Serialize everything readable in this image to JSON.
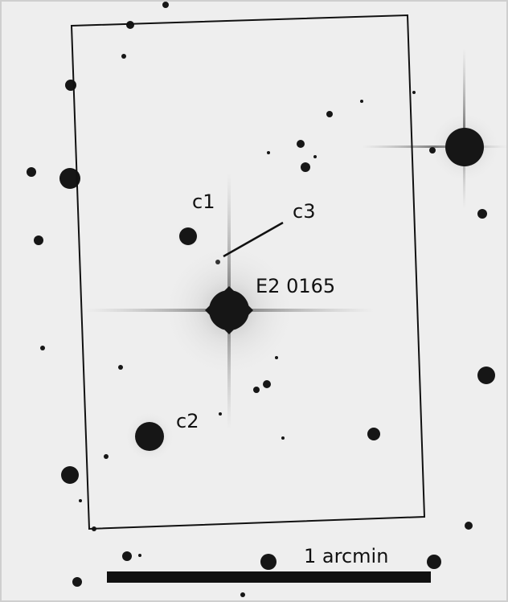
{
  "image": {
    "labels": {
      "c1": "c1",
      "c2": "c2",
      "c3": "c3",
      "target": "E2 0165",
      "scale_bar": "1 arcmin"
    },
    "colors": {
      "sky_background": "#eeeeee",
      "star": "#161616",
      "frame": "#111111",
      "border": "#cfcfcf"
    }
  }
}
